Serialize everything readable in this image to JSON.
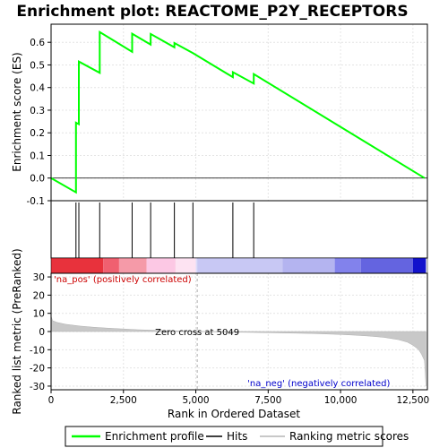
{
  "chart_data": {
    "type": "line",
    "title": "Enrichment plot: REACTOME_P2Y_RECEPTORS",
    "top_panel": {
      "ylabel": "Enrichment score (ES)",
      "ylim": [
        -0.1,
        0.68
      ],
      "yticks": [
        "-0.1",
        "0.0",
        "0.1",
        "0.2",
        "0.3",
        "0.4",
        "0.5",
        "0.6"
      ],
      "ytick_values": [
        -0.1,
        0.0,
        0.1,
        0.2,
        0.3,
        0.4,
        0.5,
        0.6
      ],
      "grid": true,
      "series": [
        {
          "name": "Enrichment profile",
          "color": "#00ff00",
          "x": [
            0,
            860,
            861,
            960,
            961,
            1680,
            1681,
            2800,
            2801,
            3440,
            3441,
            4260,
            4261,
            4900,
            6280,
            6281,
            7000,
            7001,
            12900
          ],
          "y": [
            0.0,
            -0.063,
            0.245,
            0.238,
            0.515,
            0.465,
            0.645,
            0.558,
            0.638,
            0.59,
            0.637,
            0.578,
            0.597,
            0.552,
            0.446,
            0.468,
            0.418,
            0.46,
            0.0
          ]
        }
      ]
    },
    "hits": {
      "name": "Hits",
      "positions": [
        860,
        960,
        1680,
        2800,
        3440,
        4260,
        4900,
        6280,
        7000
      ]
    },
    "ranking_bar": {
      "colors": [
        "#e8323c",
        "#f06070",
        "#f59aa8",
        "#fcc8e4",
        "#fde3f2",
        "#dcdcfa",
        "#c8c8f4",
        "#b4b4f0",
        "#8282ec",
        "#6464e0",
        "#1212cc"
      ],
      "breaks": [
        0,
        1800,
        2350,
        3300,
        4300,
        5000,
        5049,
        8000,
        9800,
        10700,
        12500,
        12950
      ]
    },
    "bottom_panel": {
      "ylabel": "Ranked list metric (PreRanked)",
      "xlabel": "Rank in Ordered Dataset",
      "ylim": [
        -32,
        32
      ],
      "yticks": [
        "-30",
        "-20",
        "-10",
        "0",
        "10",
        "20",
        "30"
      ],
      "ytick_values": [
        -30,
        -20,
        -10,
        0,
        10,
        20,
        30
      ],
      "xlim": [
        0,
        13000
      ],
      "xticks": [
        "0",
        "2,500",
        "5,000",
        "7,500",
        "10,000",
        "12,500"
      ],
      "xtick_values": [
        0,
        2500,
        5000,
        7500,
        10000,
        12500
      ],
      "series": [
        {
          "name": "Ranking metric scores",
          "color": "#c8c8c8",
          "x": [
            0,
            50,
            200,
            500,
            1000,
            1500,
            2000,
            3000,
            4000,
            5049,
            6000,
            7000,
            8000,
            9000,
            10000,
            10500,
            11000,
            11500,
            12000,
            12300,
            12500,
            12700,
            12800,
            12900,
            12950
          ],
          "y": [
            8.5,
            6.0,
            5.0,
            4.0,
            3.0,
            2.3,
            1.8,
            1.0,
            0.5,
            0.0,
            -0.3,
            -0.5,
            -0.8,
            -1.1,
            -1.6,
            -2.0,
            -2.5,
            -3.2,
            -4.5,
            -5.8,
            -7.5,
            -10.0,
            -12.5,
            -16.0,
            -30.0
          ]
        }
      ],
      "zero_cross_label": "Zero cross at 5049",
      "zero_cross_x": 5049,
      "pos_label": "'na_pos' (positively correlated)",
      "neg_label": "'na_neg' (negatively correlated)",
      "pos_color": "#cc0000",
      "neg_color": "#0000cc"
    },
    "legend": {
      "placement": "bottom",
      "entries": [
        {
          "label": "Enrichment profile",
          "color": "#00ff00"
        },
        {
          "label": "Hits",
          "color": "#000000"
        },
        {
          "label": "Ranking metric scores",
          "color": "#c8c8c8"
        }
      ]
    }
  }
}
